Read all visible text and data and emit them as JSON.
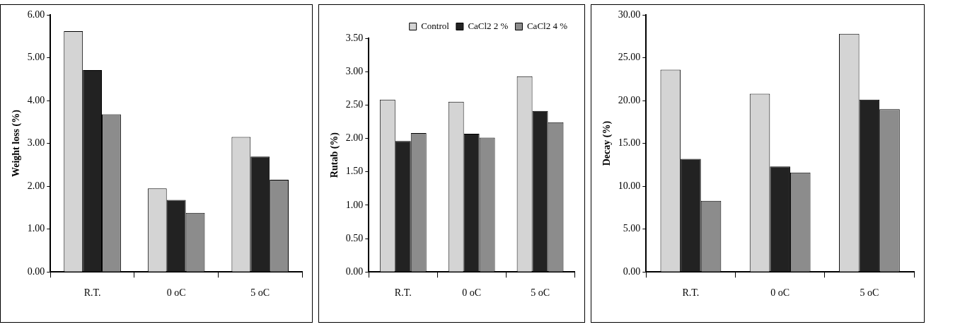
{
  "chart_data": [
    {
      "type": "bar",
      "ylabel": "Weight loss (%)",
      "categories": [
        "R.T.",
        "0 oC",
        "5 oC"
      ],
      "series": [
        {
          "color": "#d4d4d4",
          "values": [
            5.62,
            1.95,
            3.15
          ]
        },
        {
          "color": "#222222",
          "values": [
            4.71,
            1.68,
            2.69
          ]
        },
        {
          "color": "#8c8c8c",
          "values": [
            3.68,
            1.38,
            2.15
          ]
        }
      ],
      "ylim": [
        0,
        6
      ],
      "yticks": [
        {
          "value": 0,
          "label": "0.00"
        },
        {
          "value": 1,
          "label": "1.00"
        },
        {
          "value": 2,
          "label": "2.00"
        },
        {
          "value": 3,
          "label": "3.00"
        },
        {
          "value": 4,
          "label": "4.00"
        },
        {
          "value": 5,
          "label": "5.00"
        },
        {
          "value": 6,
          "label": "6.00"
        }
      ],
      "grid": false,
      "legend": false
    },
    {
      "type": "bar",
      "ylabel": "Rutab (%)",
      "categories": [
        "R.T.",
        "0 oC",
        "5 oC"
      ],
      "series": [
        {
          "name": "Control",
          "color": "#d4d4d4",
          "values": [
            2.58,
            2.55,
            2.93
          ]
        },
        {
          "name": "CaCl2 2 %",
          "color": "#222222",
          "values": [
            1.96,
            2.07,
            2.41
          ]
        },
        {
          "name": "CaCl2 4 %",
          "color": "#8c8c8c",
          "values": [
            2.08,
            2.01,
            2.24
          ]
        }
      ],
      "ylim": [
        0,
        3.5
      ],
      "yticks": [
        {
          "value": 0,
          "label": "0.00"
        },
        {
          "value": 0.5,
          "label": "0.50"
        },
        {
          "value": 1,
          "label": "1.00"
        },
        {
          "value": 1.5,
          "label": "1.50"
        },
        {
          "value": 2,
          "label": "2.00"
        },
        {
          "value": 2.5,
          "label": "2.50"
        },
        {
          "value": 3,
          "label": "3.00"
        },
        {
          "value": 3.5,
          "label": "3.50"
        }
      ],
      "grid": false,
      "legend": "top right"
    },
    {
      "type": "bar",
      "ylabel": "Decay (%)",
      "categories": [
        "R.T.",
        "0 oC",
        "5 oC"
      ],
      "series": [
        {
          "color": "#d4d4d4",
          "values": [
            23.6,
            20.8,
            27.8
          ]
        },
        {
          "color": "#222222",
          "values": [
            13.2,
            12.3,
            20.1
          ]
        },
        {
          "color": "#8c8c8c",
          "values": [
            8.3,
            11.6,
            19.0
          ]
        }
      ],
      "ylim": [
        0,
        30
      ],
      "yticks": [
        {
          "value": 0,
          "label": "0.00"
        },
        {
          "value": 5,
          "label": "5.00"
        },
        {
          "value": 10,
          "label": "10.00"
        },
        {
          "value": 15,
          "label": "15.00"
        },
        {
          "value": 20,
          "label": "20.00"
        },
        {
          "value": 25,
          "label": "25.00"
        },
        {
          "value": 30,
          "label": "30.00"
        }
      ],
      "grid": false,
      "legend": false
    }
  ]
}
